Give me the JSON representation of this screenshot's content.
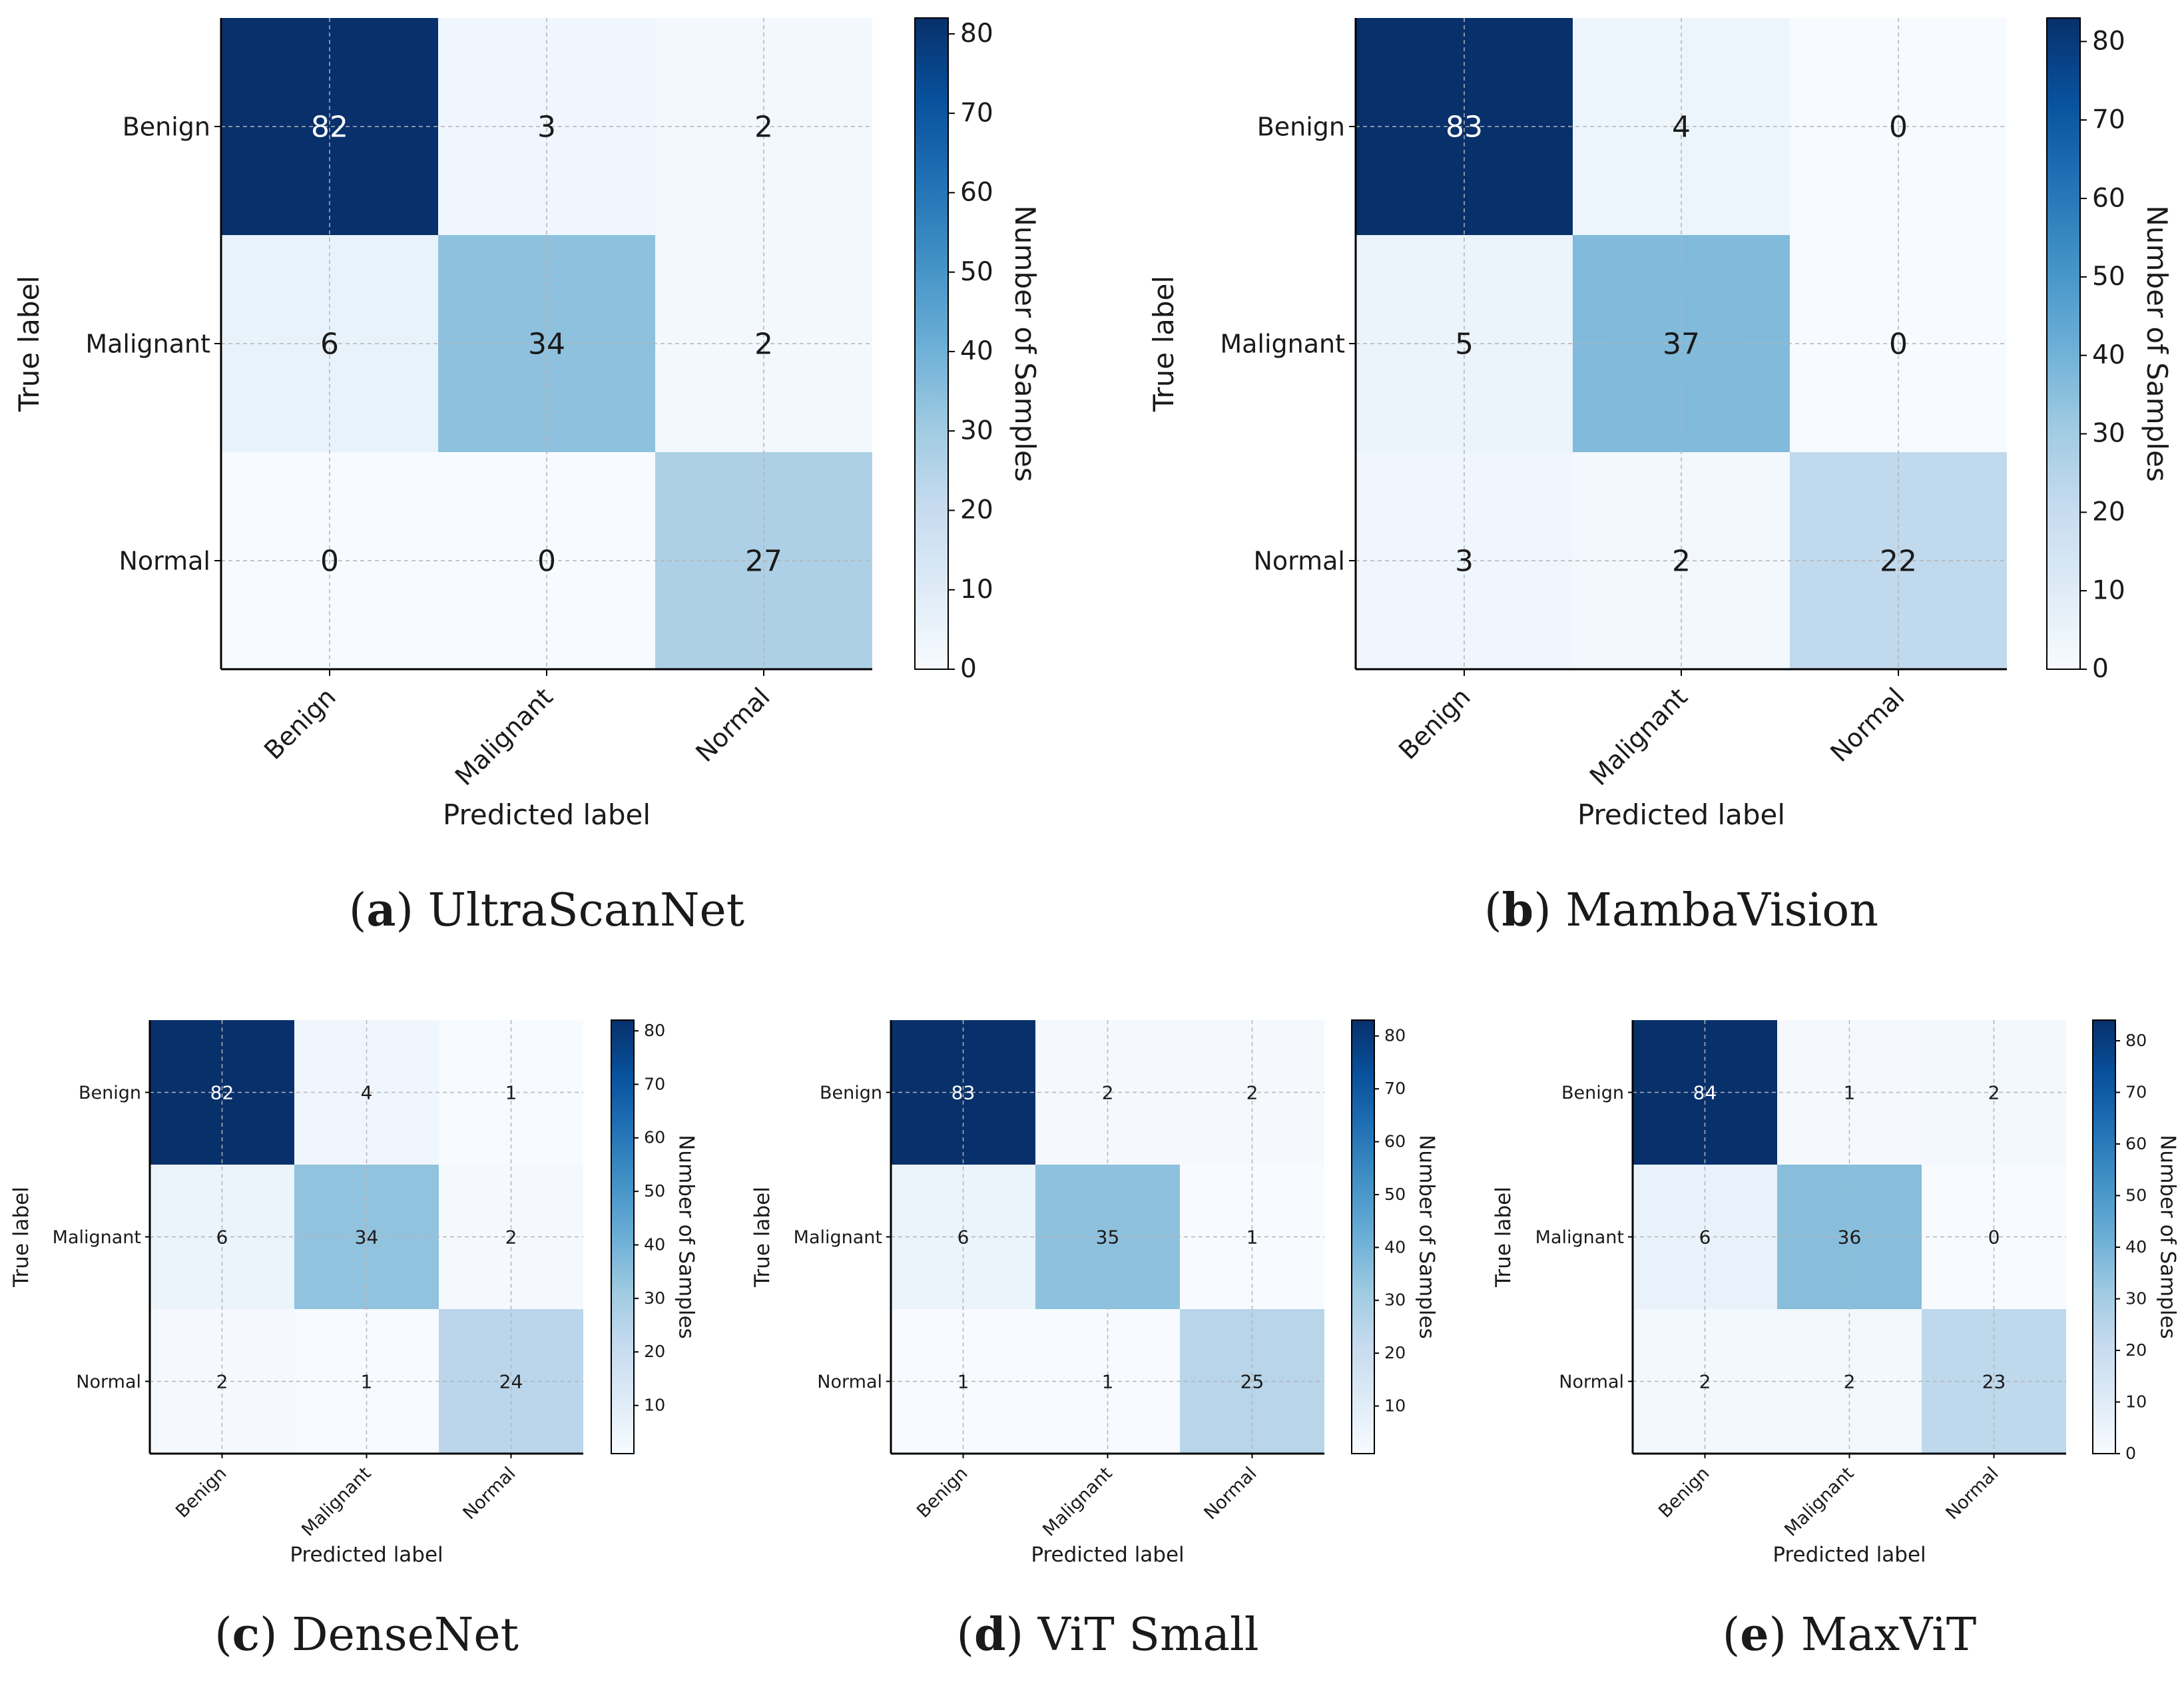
{
  "chart_data": [
    {
      "type": "heatmap",
      "panel": "a",
      "caption": "UltraScanNet",
      "xlabel": "Predicted label",
      "ylabel": "True label",
      "categories": [
        "Benign",
        "Malignant",
        "Normal"
      ],
      "matrix": [
        [
          82,
          3,
          2
        ],
        [
          6,
          34,
          2
        ],
        [
          0,
          0,
          27
        ]
      ],
      "colorbar": {
        "label": "Number of Samples",
        "ticks": [
          0,
          10,
          20,
          30,
          40,
          50,
          60,
          70,
          80
        ],
        "range": [
          0,
          82
        ]
      }
    },
    {
      "type": "heatmap",
      "panel": "b",
      "caption": "MambaVision",
      "xlabel": "Predicted label",
      "ylabel": "True label",
      "categories": [
        "Benign",
        "Malignant",
        "Normal"
      ],
      "matrix": [
        [
          83,
          4,
          0
        ],
        [
          5,
          37,
          0
        ],
        [
          3,
          2,
          22
        ]
      ],
      "colorbar": {
        "label": "Number of Samples",
        "ticks": [
          0,
          10,
          20,
          30,
          40,
          50,
          60,
          70,
          80
        ],
        "range": [
          0,
          83
        ]
      }
    },
    {
      "type": "heatmap",
      "panel": "c",
      "caption": "DenseNet",
      "xlabel": "Predicted label",
      "ylabel": "True label",
      "categories": [
        "Benign",
        "Malignant",
        "Normal"
      ],
      "matrix": [
        [
          82,
          4,
          1
        ],
        [
          6,
          34,
          2
        ],
        [
          2,
          1,
          24
        ]
      ],
      "colorbar": {
        "label": "Number of Samples",
        "ticks": [
          10,
          20,
          30,
          40,
          50,
          60,
          70,
          80
        ],
        "range": [
          1,
          82
        ]
      }
    },
    {
      "type": "heatmap",
      "panel": "d",
      "caption": "ViT Small",
      "xlabel": "Predicted label",
      "ylabel": "True label",
      "categories": [
        "Benign",
        "Malignant",
        "Normal"
      ],
      "matrix": [
        [
          83,
          2,
          2
        ],
        [
          6,
          35,
          1
        ],
        [
          1,
          1,
          25
        ]
      ],
      "colorbar": {
        "label": "Number of Samples",
        "ticks": [
          10,
          20,
          30,
          40,
          50,
          60,
          70,
          80
        ],
        "range": [
          1,
          83
        ]
      }
    },
    {
      "type": "heatmap",
      "panel": "e",
      "caption": "MaxViT",
      "xlabel": "Predicted label",
      "ylabel": "True label",
      "categories": [
        "Benign",
        "Malignant",
        "Normal"
      ],
      "matrix": [
        [
          84,
          1,
          2
        ],
        [
          6,
          36,
          0
        ],
        [
          2,
          2,
          23
        ]
      ],
      "colorbar": {
        "label": "Number of Samples",
        "ticks": [
          0,
          10,
          20,
          30,
          40,
          50,
          60,
          70,
          80
        ],
        "range": [
          0,
          84
        ]
      }
    }
  ],
  "colors": {
    "text": "#1a1a1a",
    "grid": "#b4b4b4",
    "light_text": "#ffffff",
    "blues": [
      "#f7fbff",
      "#deebf7",
      "#c6dbef",
      "#9ecae1",
      "#6baed6",
      "#4292c6",
      "#2171b5",
      "#08519c",
      "#08306b"
    ]
  }
}
